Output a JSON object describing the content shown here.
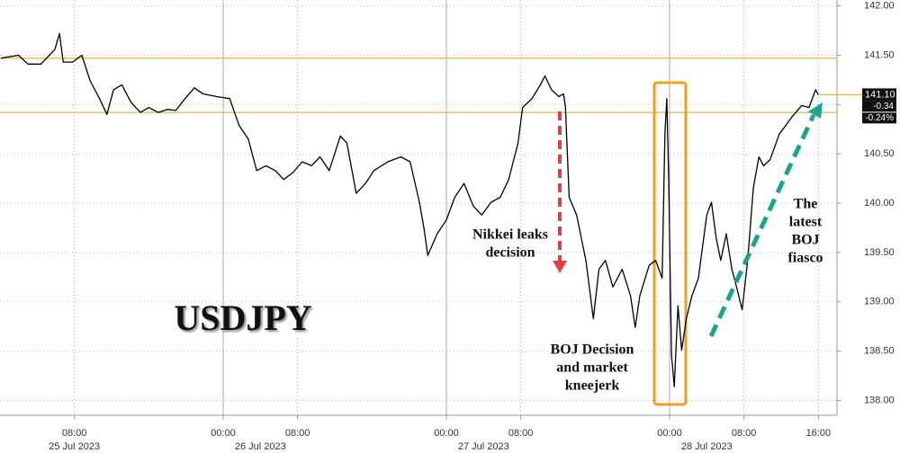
{
  "chart_data": {
    "type": "line",
    "title": "USDJPY",
    "color": "#000000",
    "grid": true,
    "xlim": [
      0,
      90
    ],
    "ylim": [
      137.85,
      142.06
    ],
    "xticks": [
      {
        "value": 8,
        "label": "08:00"
      },
      {
        "value": 24,
        "label": "00:00"
      },
      {
        "value": 32,
        "label": "08:00"
      },
      {
        "value": 48,
        "label": "00:00"
      },
      {
        "value": 56,
        "label": "08:00"
      },
      {
        "value": 72,
        "label": "00:00"
      },
      {
        "value": 80,
        "label": "08:00"
      },
      {
        "value": 88,
        "label": "16:00"
      }
    ],
    "date_ticks": [
      {
        "value": 8,
        "label": "25 Jul 2023"
      },
      {
        "value": 28,
        "label": "26 Jul 2023"
      },
      {
        "value": 52,
        "label": "27 Jul 2023"
      },
      {
        "value": 76,
        "label": "28 Jul 2023"
      }
    ],
    "yticks": [
      {
        "value": 142,
        "label": "142.00"
      },
      {
        "value": 141.5,
        "label": "141.50"
      },
      {
        "value": 141,
        "label": "141.00"
      },
      {
        "value": 140.5,
        "label": "140.50"
      },
      {
        "value": 140,
        "label": "140.00"
      },
      {
        "value": 139.5,
        "label": "139.50"
      },
      {
        "value": 139,
        "label": "139.00"
      },
      {
        "value": 138.5,
        "label": "138.50"
      },
      {
        "value": 138,
        "label": "138.00"
      }
    ],
    "x": [
      0.1,
      2.0,
      3.0,
      4.4,
      5.9,
      6.4,
      6.8,
      7.8,
      8.8,
      9.7,
      10.7,
      11.5,
      12.2,
      13.1,
      14.1,
      15.1,
      16.0,
      17.0,
      18.0,
      18.9,
      19.9,
      20.9,
      21.8,
      23.3,
      24.7,
      25.7,
      26.7,
      27.6,
      28.6,
      29.6,
      30.5,
      31.5,
      32.5,
      33.5,
      34.4,
      35.4,
      36.6,
      37.3,
      38.3,
      39.3,
      40.2,
      41.7,
      43.1,
      44.1,
      45.1,
      45.6,
      46.0,
      47.0,
      48.0,
      48.9,
      49.9,
      50.9,
      51.8,
      52.8,
      53.8,
      54.7,
      55.7,
      56.2,
      57.2,
      58.1,
      58.6,
      59.3,
      60.1,
      60.6,
      60.8,
      61.2,
      62.0,
      63.0,
      63.8,
      64.4,
      65.1,
      65.9,
      66.9,
      67.8,
      68.3,
      68.8,
      69.8,
      70.5,
      71.2,
      71.5,
      71.7,
      71.9,
      72.2,
      72.5,
      72.9,
      73.3,
      73.8,
      74.4,
      75.1,
      76.0,
      76.5,
      77.0,
      77.5,
      78.1,
      78.7,
      79.2,
      79.8,
      80.4,
      81.0,
      81.6,
      82.1,
      82.8,
      83.8,
      84.5,
      85.2,
      86.2,
      87.0,
      87.7,
      88.0
    ],
    "values": [
      141.47,
      141.5,
      141.41,
      141.41,
      141.56,
      141.72,
      141.43,
      141.43,
      141.5,
      141.24,
      141.06,
      140.9,
      141.15,
      141.2,
      141.02,
      140.92,
      140.97,
      140.92,
      140.95,
      140.94,
      141.06,
      141.17,
      141.11,
      141.08,
      141.06,
      140.79,
      140.65,
      140.33,
      140.38,
      140.33,
      140.24,
      140.31,
      140.42,
      140.38,
      140.47,
      140.33,
      140.68,
      140.61,
      140.1,
      140.2,
      140.33,
      140.42,
      140.47,
      140.42,
      140.01,
      139.74,
      139.47,
      139.69,
      139.83,
      140.06,
      140.2,
      139.97,
      139.88,
      140.01,
      140.06,
      140.24,
      140.61,
      140.97,
      141.06,
      141.2,
      141.29,
      141.15,
      141.08,
      141.11,
      140.97,
      140.06,
      139.88,
      139.42,
      138.83,
      139.33,
      139.42,
      139.15,
      139.33,
      139.06,
      138.74,
      139.06,
      139.37,
      139.42,
      139.24,
      140.7,
      141.06,
      140.24,
      138.46,
      138.14,
      138.96,
      138.51,
      138.83,
      139.06,
      139.24,
      139.88,
      140.01,
      139.65,
      139.42,
      139.69,
      139.33,
      139.15,
      138.92,
      139.42,
      140.15,
      140.47,
      140.38,
      140.44,
      140.7,
      140.79,
      140.88,
      140.99,
      140.97,
      141.15,
      141.1
    ],
    "hlines": [
      {
        "value": 141.47,
        "color": "#f0b040"
      },
      {
        "value": 140.92,
        "color": "#f0b040"
      }
    ],
    "last_price": {
      "value": 141.1,
      "label": "141.10",
      "color": "#f0b040"
    },
    "change_labels": [
      "-0.34",
      "-0.24%"
    ],
    "annotations": {
      "nikkei": [
        "Nikkei leaks",
        "decision"
      ],
      "boj_decision": [
        "BOJ Decision",
        "and market",
        "kneejerk"
      ],
      "fiasco": [
        "The",
        "latest",
        "BOJ",
        "fiasco"
      ]
    }
  }
}
